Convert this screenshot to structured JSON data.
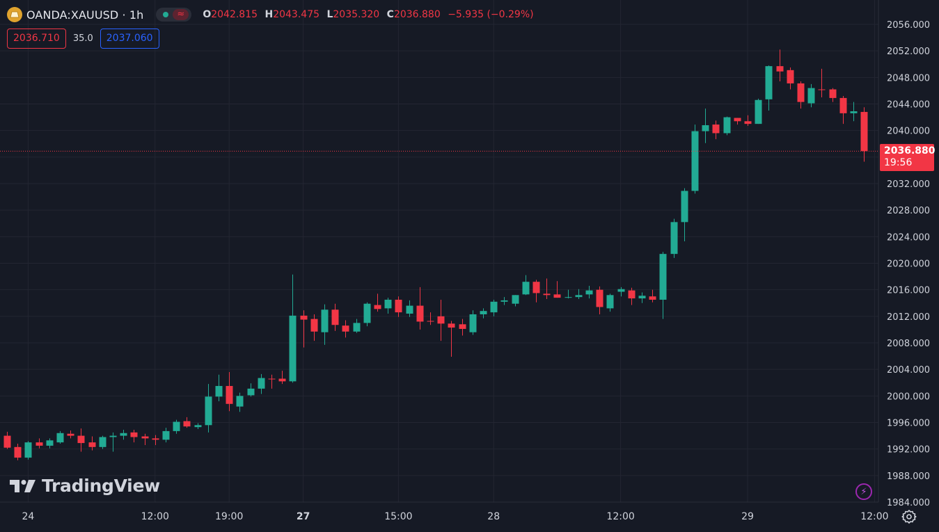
{
  "symbol": {
    "name": "OANDA:XAUUSD",
    "interval": "1h",
    "title": "OANDA:XAUUSD · 1h"
  },
  "status": {
    "market_dot_color": "#22ab94",
    "wave_glyph": "≈"
  },
  "ohlc": {
    "o_label": "O",
    "o_value": "2042.815",
    "h_label": "H",
    "h_value": "2043.475",
    "l_label": "L",
    "l_value": "2035.320",
    "c_label": "C",
    "c_value": "2036.880",
    "change": "−5.935 (−0.29%)"
  },
  "quotes": {
    "sell": "2036.710",
    "spread": "35.0",
    "buy": "2037.060"
  },
  "last_price": {
    "price": "2036.880",
    "countdown": "19:56"
  },
  "watermark": {
    "text": "TradingView"
  },
  "colors": {
    "up": "#22ab94",
    "down": "#f23645",
    "background": "#161a25",
    "grid": "#232632",
    "text": "#d1d4dc"
  },
  "icons": {
    "bolt": "lightning-bolt-icon",
    "settings": "gear-icon",
    "logo": "gold-ingot-icon"
  },
  "chart_data": {
    "type": "candlestick",
    "y_axis": {
      "min": 1984,
      "max": 2056,
      "step": 4,
      "tick_labels": [
        "1984.000",
        "1988.000",
        "1992.000",
        "1996.000",
        "2000.000",
        "2004.000",
        "2008.000",
        "2012.000",
        "2016.000",
        "2020.000",
        "2024.000",
        "2028.000",
        "2032.000",
        "2036.000",
        "2040.000",
        "2044.000",
        "2048.000",
        "2052.000",
        "2056.000"
      ]
    },
    "x_axis": {
      "ticks": [
        {
          "label": "24",
          "index": 2
        },
        {
          "label": "12:00",
          "index": 14
        },
        {
          "label": "19:00",
          "index": 21
        },
        {
          "label": "27",
          "index": 28,
          "bold": true
        },
        {
          "label": "15:00",
          "index": 37
        },
        {
          "label": "28",
          "index": 46
        },
        {
          "label": "12:00",
          "index": 58
        },
        {
          "label": "29",
          "index": 70
        },
        {
          "label": "12:00",
          "index": 82
        }
      ]
    },
    "last_close": 2036.88,
    "candles": [
      {
        "o": 1994.0,
        "h": 1994.6,
        "l": 1992.0,
        "c": 1992.2
      },
      {
        "o": 1992.3,
        "h": 1992.8,
        "l": 1990.3,
        "c": 1990.7
      },
      {
        "o": 1990.7,
        "h": 1993.2,
        "l": 1990.4,
        "c": 1993.0
      },
      {
        "o": 1993.0,
        "h": 1993.6,
        "l": 1992.1,
        "c": 1992.5
      },
      {
        "o": 1992.5,
        "h": 1993.6,
        "l": 1992.1,
        "c": 1993.3
      },
      {
        "o": 1993.0,
        "h": 1994.7,
        "l": 1992.8,
        "c": 1994.4
      },
      {
        "o": 1994.3,
        "h": 1994.8,
        "l": 1993.6,
        "c": 1994.0
      },
      {
        "o": 1994.0,
        "h": 1995.1,
        "l": 1991.6,
        "c": 1992.9
      },
      {
        "o": 1993.0,
        "h": 1993.9,
        "l": 1991.8,
        "c": 1992.3
      },
      {
        "o": 1992.3,
        "h": 1994.0,
        "l": 1992.0,
        "c": 1993.8
      },
      {
        "o": 1993.8,
        "h": 1994.5,
        "l": 1991.6,
        "c": 1994.0
      },
      {
        "o": 1994.0,
        "h": 1994.9,
        "l": 1993.4,
        "c": 1994.4
      },
      {
        "o": 1994.5,
        "h": 1994.9,
        "l": 1993.0,
        "c": 1993.8
      },
      {
        "o": 1993.9,
        "h": 1994.3,
        "l": 1992.6,
        "c": 1993.6
      },
      {
        "o": 1993.6,
        "h": 1994.1,
        "l": 1992.6,
        "c": 1993.4
      },
      {
        "o": 1993.4,
        "h": 1995.2,
        "l": 1993.0,
        "c": 1994.7
      },
      {
        "o": 1994.7,
        "h": 1996.4,
        "l": 1994.3,
        "c": 1996.1
      },
      {
        "o": 1996.2,
        "h": 1996.8,
        "l": 1995.2,
        "c": 1995.4
      },
      {
        "o": 1995.3,
        "h": 1995.9,
        "l": 1995.0,
        "c": 1995.6
      },
      {
        "o": 1995.6,
        "h": 2001.8,
        "l": 1994.5,
        "c": 1999.9
      },
      {
        "o": 1999.9,
        "h": 2003.2,
        "l": 1999.2,
        "c": 2001.5
      },
      {
        "o": 2001.5,
        "h": 2003.6,
        "l": 1997.7,
        "c": 1998.8
      },
      {
        "o": 1998.4,
        "h": 2000.5,
        "l": 1997.6,
        "c": 2000.0
      },
      {
        "o": 2000.1,
        "h": 2001.9,
        "l": 1999.9,
        "c": 2001.1
      },
      {
        "o": 2001.1,
        "h": 2003.3,
        "l": 2000.3,
        "c": 2002.7
      },
      {
        "o": 2002.6,
        "h": 2003.2,
        "l": 2001.1,
        "c": 2002.5
      },
      {
        "o": 2002.6,
        "h": 2003.8,
        "l": 2001.8,
        "c": 2002.2
      },
      {
        "o": 2002.2,
        "h": 2018.3,
        "l": 2002.0,
        "c": 2012.1
      },
      {
        "o": 2012.1,
        "h": 2012.9,
        "l": 2007.3,
        "c": 2011.5
      },
      {
        "o": 2011.6,
        "h": 2012.3,
        "l": 2008.3,
        "c": 2009.7
      },
      {
        "o": 2009.6,
        "h": 2013.8,
        "l": 2007.7,
        "c": 2013.0
      },
      {
        "o": 2013.0,
        "h": 2013.9,
        "l": 2009.8,
        "c": 2010.7
      },
      {
        "o": 2010.6,
        "h": 2011.4,
        "l": 2008.8,
        "c": 2009.7
      },
      {
        "o": 2009.7,
        "h": 2011.6,
        "l": 2009.5,
        "c": 2011.0
      },
      {
        "o": 2011.0,
        "h": 2014.1,
        "l": 2010.5,
        "c": 2013.9
      },
      {
        "o": 2013.7,
        "h": 2015.4,
        "l": 2012.7,
        "c": 2013.1
      },
      {
        "o": 2013.2,
        "h": 2014.8,
        "l": 2012.4,
        "c": 2014.5
      },
      {
        "o": 2014.5,
        "h": 2015.0,
        "l": 2011.9,
        "c": 2012.6
      },
      {
        "o": 2012.4,
        "h": 2014.4,
        "l": 2011.9,
        "c": 2013.6
      },
      {
        "o": 2013.6,
        "h": 2016.4,
        "l": 2010.0,
        "c": 2011.2
      },
      {
        "o": 2011.3,
        "h": 2012.6,
        "l": 2010.7,
        "c": 2011.2
      },
      {
        "o": 2012.0,
        "h": 2014.5,
        "l": 2008.3,
        "c": 2010.9
      },
      {
        "o": 2010.9,
        "h": 2011.3,
        "l": 2005.9,
        "c": 2010.3
      },
      {
        "o": 2010.8,
        "h": 2011.6,
        "l": 2009.1,
        "c": 2010.1
      },
      {
        "o": 2009.6,
        "h": 2012.9,
        "l": 2009.2,
        "c": 2012.3
      },
      {
        "o": 2012.3,
        "h": 2013.2,
        "l": 2011.7,
        "c": 2012.8
      },
      {
        "o": 2012.6,
        "h": 2014.5,
        "l": 2012.0,
        "c": 2014.2
      },
      {
        "o": 2014.2,
        "h": 2014.9,
        "l": 2013.7,
        "c": 2014.4
      },
      {
        "o": 2013.9,
        "h": 2015.2,
        "l": 2013.5,
        "c": 2015.2
      },
      {
        "o": 2015.3,
        "h": 2018.2,
        "l": 2015.2,
        "c": 2017.2
      },
      {
        "o": 2017.2,
        "h": 2017.5,
        "l": 2014.1,
        "c": 2015.5
      },
      {
        "o": 2015.4,
        "h": 2017.7,
        "l": 2014.6,
        "c": 2015.2
      },
      {
        "o": 2015.3,
        "h": 2017.3,
        "l": 2014.8,
        "c": 2014.8
      },
      {
        "o": 2014.9,
        "h": 2016.0,
        "l": 2014.7,
        "c": 2014.9
      },
      {
        "o": 2014.9,
        "h": 2016.1,
        "l": 2014.6,
        "c": 2015.2
      },
      {
        "o": 2015.3,
        "h": 2016.6,
        "l": 2014.7,
        "c": 2015.9
      },
      {
        "o": 2016.0,
        "h": 2016.5,
        "l": 2012.3,
        "c": 2013.4
      },
      {
        "o": 2013.2,
        "h": 2015.4,
        "l": 2012.7,
        "c": 2015.2
      },
      {
        "o": 2015.7,
        "h": 2016.4,
        "l": 2015.0,
        "c": 2016.1
      },
      {
        "o": 2015.9,
        "h": 2016.3,
        "l": 2013.7,
        "c": 2014.7
      },
      {
        "o": 2014.7,
        "h": 2015.6,
        "l": 2014.0,
        "c": 2015.1
      },
      {
        "o": 2015.0,
        "h": 2016.0,
        "l": 2014.1,
        "c": 2014.5
      },
      {
        "o": 2014.5,
        "h": 2021.7,
        "l": 2011.6,
        "c": 2021.4
      },
      {
        "o": 2021.4,
        "h": 2026.7,
        "l": 2020.8,
        "c": 2026.2
      },
      {
        "o": 2026.2,
        "h": 2031.3,
        "l": 2023.3,
        "c": 2030.9
      },
      {
        "o": 2030.9,
        "h": 2040.9,
        "l": 2030.5,
        "c": 2039.9
      },
      {
        "o": 2039.9,
        "h": 2043.3,
        "l": 2038.1,
        "c": 2040.8
      },
      {
        "o": 2040.9,
        "h": 2041.5,
        "l": 2038.7,
        "c": 2039.6
      },
      {
        "o": 2039.6,
        "h": 2042.1,
        "l": 2039.3,
        "c": 2042.0
      },
      {
        "o": 2041.9,
        "h": 2041.9,
        "l": 2040.9,
        "c": 2041.4
      },
      {
        "o": 2041.4,
        "h": 2042.3,
        "l": 2040.7,
        "c": 2041.0
      },
      {
        "o": 2041.0,
        "h": 2044.8,
        "l": 2041.0,
        "c": 2044.6
      },
      {
        "o": 2044.7,
        "h": 2049.8,
        "l": 2043.0,
        "c": 2049.7
      },
      {
        "o": 2049.7,
        "h": 2052.2,
        "l": 2047.4,
        "c": 2048.9
      },
      {
        "o": 2049.1,
        "h": 2049.5,
        "l": 2046.2,
        "c": 2047.1
      },
      {
        "o": 2047.1,
        "h": 2047.4,
        "l": 2043.3,
        "c": 2044.3
      },
      {
        "o": 2044.1,
        "h": 2047.0,
        "l": 2043.5,
        "c": 2046.4
      },
      {
        "o": 2046.2,
        "h": 2049.3,
        "l": 2045.0,
        "c": 2046.1
      },
      {
        "o": 2046.2,
        "h": 2046.4,
        "l": 2044.3,
        "c": 2044.9
      },
      {
        "o": 2044.9,
        "h": 2045.2,
        "l": 2041.0,
        "c": 2042.6
      },
      {
        "o": 2042.6,
        "h": 2044.3,
        "l": 2041.4,
        "c": 2042.9
      },
      {
        "o": 2042.8,
        "h": 2043.5,
        "l": 2035.3,
        "c": 2036.9
      }
    ]
  }
}
